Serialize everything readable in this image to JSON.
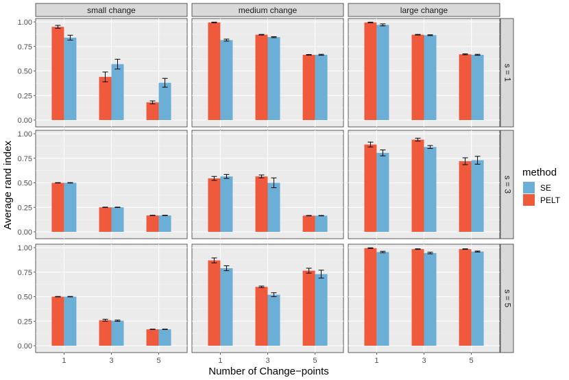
{
  "chart_data": {
    "type": "bar",
    "title": "",
    "xlabel": "Number of Change−points",
    "ylabel": "Average rand index",
    "categories": [
      "1",
      "3",
      "5"
    ],
    "ylim": [
      0,
      1.0
    ],
    "yticks": [
      "0.00",
      "0.25",
      "0.50",
      "0.75",
      "1.00"
    ],
    "columns": [
      "small change",
      "medium change",
      "large change"
    ],
    "rows": [
      "s = 1",
      "s = 3",
      "s = 5"
    ],
    "legend": {
      "title": "method",
      "position": "right",
      "items": [
        {
          "name": "SE",
          "color": "#6baed6"
        },
        {
          "name": "PELT",
          "color": "#ef5a3d"
        }
      ]
    },
    "panels": [
      {
        "row": "s = 1",
        "col": "small change",
        "series": [
          {
            "name": "PELT",
            "values": [
              0.95,
              0.44,
              0.18
            ],
            "errors": [
              0.015,
              0.05,
              0.015
            ]
          },
          {
            "name": "SE",
            "values": [
              0.84,
              0.57,
              0.38
            ],
            "errors": [
              0.025,
              0.05,
              0.045
            ]
          }
        ]
      },
      {
        "row": "s = 1",
        "col": "medium change",
        "series": [
          {
            "name": "PELT",
            "values": [
              0.995,
              0.87,
              0.665
            ],
            "errors": [
              0.003,
              0.003,
              0.003
            ]
          },
          {
            "name": "SE",
            "values": [
              0.815,
              0.845,
              0.665
            ],
            "errors": [
              0.01,
              0.005,
              0.005
            ]
          }
        ]
      },
      {
        "row": "s = 1",
        "col": "large change",
        "series": [
          {
            "name": "PELT",
            "values": [
              0.995,
              0.87,
              0.67
            ],
            "errors": [
              0.003,
              0.003,
              0.005
            ]
          },
          {
            "name": "SE",
            "values": [
              0.97,
              0.865,
              0.665
            ],
            "errors": [
              0.01,
              0.004,
              0.005
            ]
          }
        ]
      },
      {
        "row": "s = 3",
        "col": "small change",
        "series": [
          {
            "name": "PELT",
            "values": [
              0.5,
              0.25,
              0.167
            ],
            "errors": [
              0.002,
              0.002,
              0.002
            ]
          },
          {
            "name": "SE",
            "values": [
              0.5,
              0.25,
              0.167
            ],
            "errors": [
              0.002,
              0.002,
              0.002
            ]
          }
        ]
      },
      {
        "row": "s = 3",
        "col": "medium change",
        "series": [
          {
            "name": "PELT",
            "values": [
              0.545,
              0.565,
              0.165
            ],
            "errors": [
              0.02,
              0.015,
              0.002
            ]
          },
          {
            "name": "SE",
            "values": [
              0.565,
              0.5,
              0.165
            ],
            "errors": [
              0.02,
              0.05,
              0.002
            ]
          }
        ]
      },
      {
        "row": "s = 3",
        "col": "large change",
        "series": [
          {
            "name": "PELT",
            "values": [
              0.89,
              0.94,
              0.72
            ],
            "errors": [
              0.025,
              0.015,
              0.035
            ]
          },
          {
            "name": "SE",
            "values": [
              0.805,
              0.865,
              0.73
            ],
            "errors": [
              0.03,
              0.015,
              0.04
            ]
          }
        ]
      },
      {
        "row": "s = 5",
        "col": "small change",
        "series": [
          {
            "name": "PELT",
            "values": [
              0.5,
              0.26,
              0.167
            ],
            "errors": [
              0.002,
              0.01,
              0.002
            ]
          },
          {
            "name": "SE",
            "values": [
              0.5,
              0.255,
              0.167
            ],
            "errors": [
              0.002,
              0.006,
              0.002
            ]
          }
        ]
      },
      {
        "row": "s = 5",
        "col": "medium change",
        "series": [
          {
            "name": "PELT",
            "values": [
              0.87,
              0.6,
              0.765
            ],
            "errors": [
              0.025,
              0.008,
              0.025
            ]
          },
          {
            "name": "SE",
            "values": [
              0.79,
              0.52,
              0.73
            ],
            "errors": [
              0.025,
              0.02,
              0.04
            ]
          }
        ]
      },
      {
        "row": "s = 5",
        "col": "large change",
        "series": [
          {
            "name": "PELT",
            "values": [
              0.995,
              0.985,
              0.985
            ],
            "errors": [
              0.003,
              0.003,
              0.003
            ]
          },
          {
            "name": "SE",
            "values": [
              0.955,
              0.945,
              0.96
            ],
            "errors": [
              0.008,
              0.008,
              0.005
            ]
          }
        ]
      }
    ]
  }
}
